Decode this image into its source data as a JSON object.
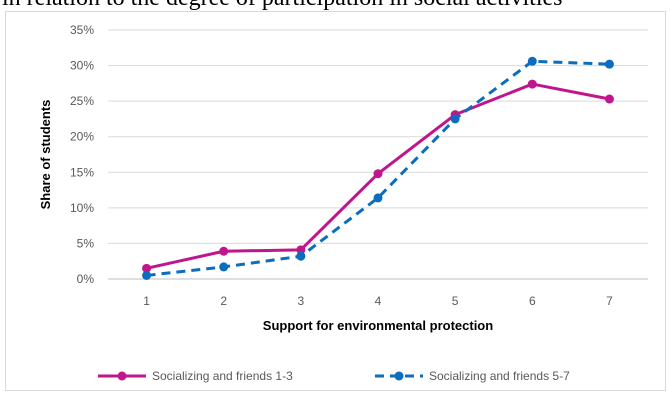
{
  "caption_fragment": "in relation to the degree of participation in social activities",
  "chart_data": {
    "type": "line",
    "title": "",
    "xlabel": "Support for environmental protection",
    "ylabel": "Share of students",
    "categories": [
      "1",
      "2",
      "3",
      "4",
      "5",
      "6",
      "7"
    ],
    "ylim": [
      0,
      35
    ],
    "yticks": [
      "0%",
      "5%",
      "10%",
      "15%",
      "20%",
      "25%",
      "30%",
      "35%"
    ],
    "grid": "horizontal",
    "legend_position": "bottom",
    "series": [
      {
        "name": "Socializing and friends 1-3",
        "values": [
          1.5,
          3.9,
          4.1,
          14.8,
          23.1,
          27.4,
          25.3
        ],
        "color": "#c0158c",
        "line_style": "solid"
      },
      {
        "name": "Socializing and friends 5-7",
        "values": [
          0.5,
          1.7,
          3.2,
          11.4,
          22.5,
          30.6,
          30.2
        ],
        "color": "#0b6dbf",
        "line_style": "dashed"
      }
    ]
  }
}
